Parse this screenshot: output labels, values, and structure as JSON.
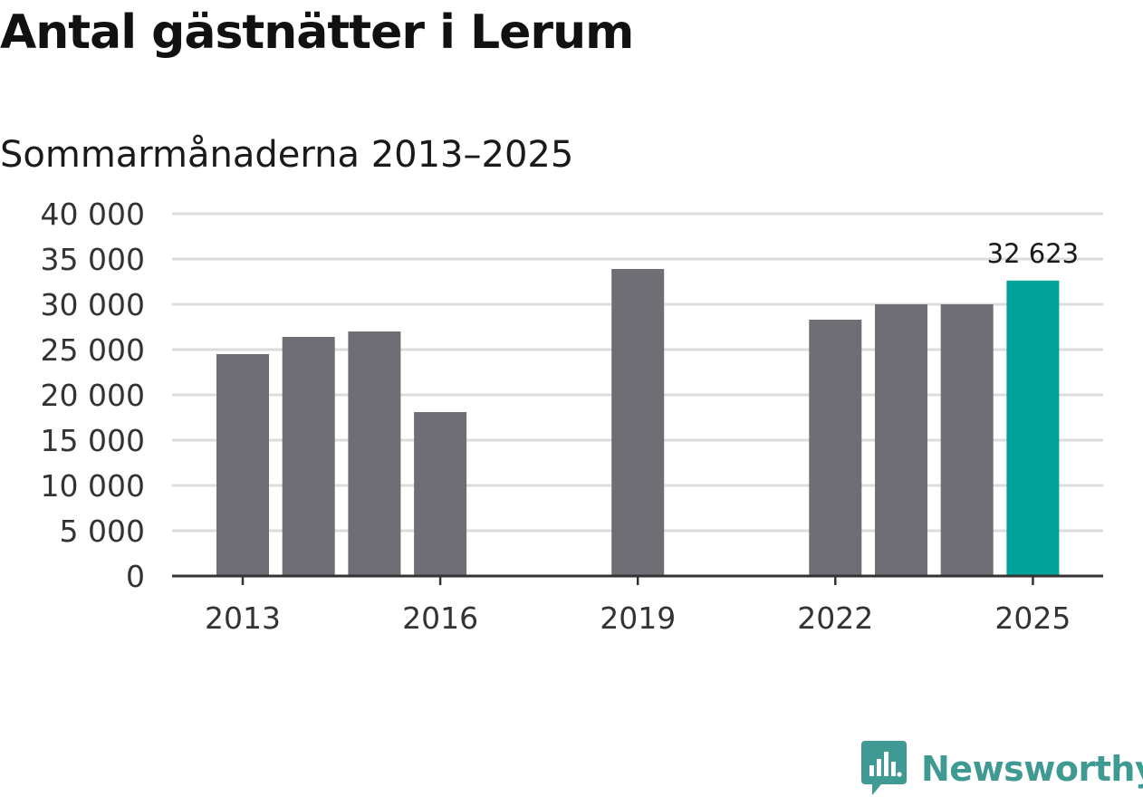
{
  "title": "Antal gästnätter i Lerum",
  "subtitle": "Sommarmånaderna 2013–2025",
  "brand": {
    "name": "Newsworthy",
    "icon": "newsworthy-logo-icon",
    "color": "#3f9a93"
  },
  "colors": {
    "bar": "#6f6e74",
    "highlight": "#00a39a",
    "grid": "#dcdcdc",
    "axis": "#333333"
  },
  "chart_data": {
    "type": "bar",
    "categories": [
      2013,
      2014,
      2015,
      2016,
      2017,
      2018,
      2019,
      2020,
      2021,
      2022,
      2023,
      2024,
      2025
    ],
    "values": [
      24500,
      26400,
      27000,
      18100,
      null,
      null,
      33900,
      null,
      null,
      28300,
      30000,
      30000,
      32623
    ],
    "highlight": 2025,
    "data_labels": [
      {
        "category": 2025,
        "text": "32 623"
      }
    ],
    "xticks": [
      2013,
      2016,
      2019,
      2022,
      2025
    ],
    "xtick_labels": [
      "2013",
      "2016",
      "2019",
      "2022",
      "2025"
    ],
    "yticks": [
      0,
      5000,
      10000,
      15000,
      20000,
      25000,
      30000,
      35000,
      40000
    ],
    "ytick_labels": [
      "0",
      "5 000",
      "10 000",
      "15 000",
      "20 000",
      "25 000",
      "30 000",
      "35 000",
      "40 000"
    ],
    "ylim": [
      0,
      40000
    ],
    "grid": true,
    "legend": "none",
    "title": "Antal gästnätter i Lerum",
    "subtitle": "Sommarmånaderna 2013–2025",
    "xlabel": "",
    "ylabel": ""
  }
}
